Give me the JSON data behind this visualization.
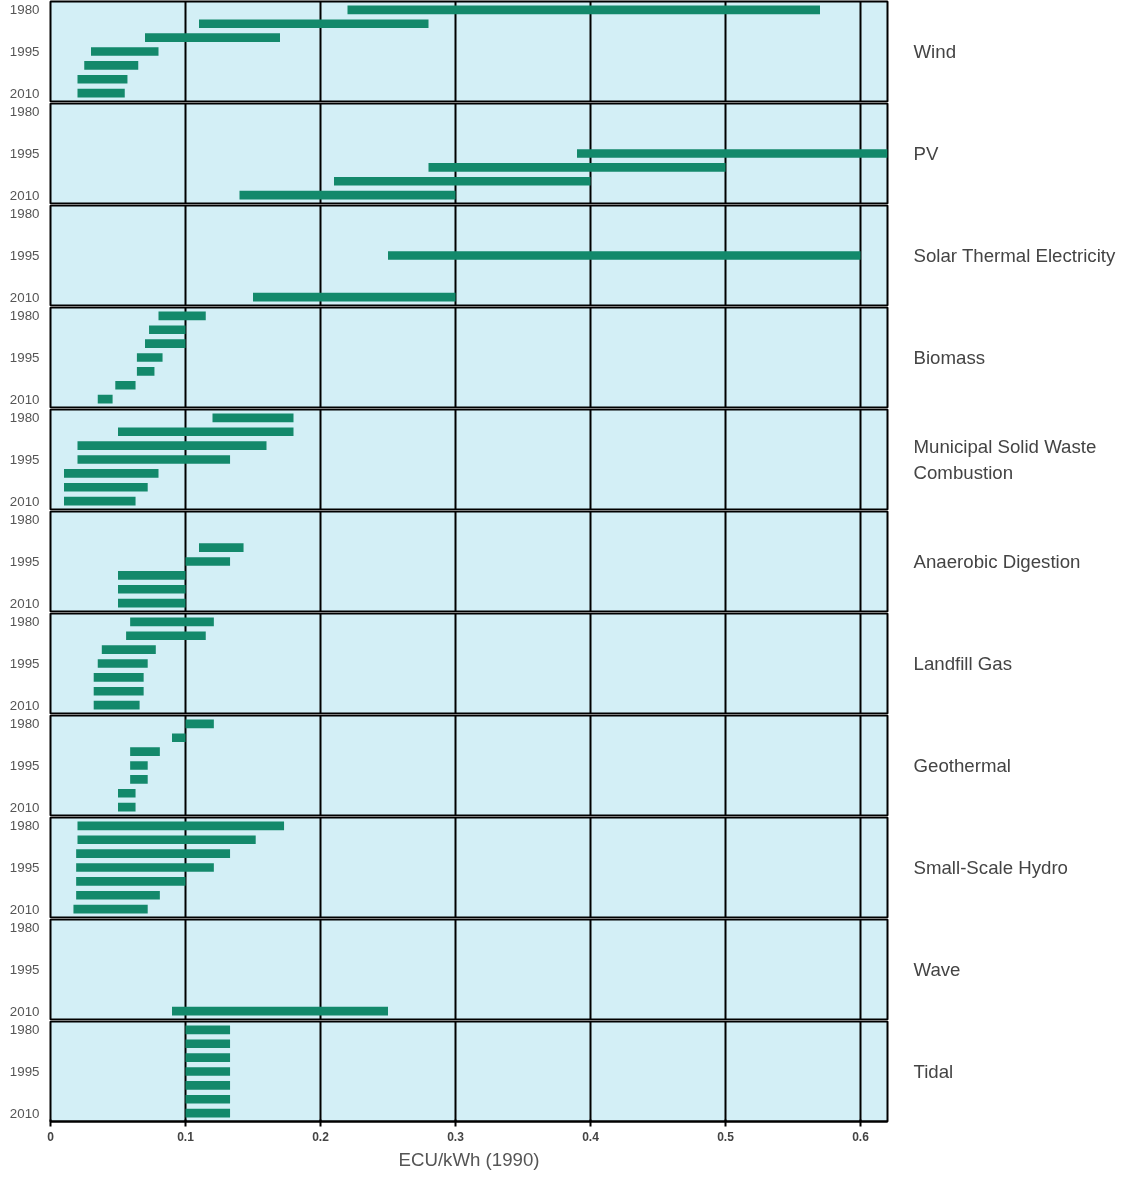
{
  "chart_data": [
    {
      "type": "bar",
      "orientation": "horizontal",
      "y2label": "Wind",
      "categories": [
        "1980",
        null,
        null,
        "1995",
        null,
        null,
        "2010"
      ],
      "base": [
        0.22,
        0.11,
        0.07,
        0.03,
        0.025,
        0.02,
        0.02
      ],
      "values": [
        0.35,
        0.17,
        0.1,
        0.05,
        0.04,
        0.037,
        0.035
      ],
      "color": "#13896b",
      "xlim": [
        0,
        0.62
      ],
      "xticks": [
        0,
        0.1,
        0.2,
        0.3,
        0.4,
        0.5,
        0.6
      ],
      "grid": "x",
      "tick_labels": "y"
    },
    {
      "type": "bar",
      "orientation": "horizontal",
      "y2label": "PV",
      "categories": [
        "1980",
        null,
        null,
        "1995",
        null,
        null,
        "2010"
      ],
      "base": [
        null,
        null,
        null,
        0.39,
        0.28,
        0.21,
        0.14
      ],
      "values": [
        null,
        null,
        null,
        0.23,
        0.22,
        0.19,
        0.16
      ],
      "color": "#13896b",
      "xlim": [
        0,
        0.62
      ],
      "xticks": [
        0,
        0.1,
        0.2,
        0.3,
        0.4,
        0.5,
        0.6
      ],
      "grid": "x",
      "tick_labels": "y"
    },
    {
      "type": "bar",
      "orientation": "horizontal",
      "y2label": "Solar Thermal Electricity",
      "categories": [
        "1980",
        null,
        null,
        "1995",
        null,
        null,
        "2010"
      ],
      "base": [
        null,
        null,
        null,
        0.25,
        null,
        null,
        0.15
      ],
      "values": [
        null,
        null,
        null,
        0.35,
        null,
        null,
        0.15
      ],
      "color": "#13896b",
      "xlim": [
        0,
        0.62
      ],
      "xticks": [
        0,
        0.1,
        0.2,
        0.3,
        0.4,
        0.5,
        0.6
      ],
      "grid": "x",
      "tick_labels": "y"
    },
    {
      "type": "bar",
      "orientation": "horizontal",
      "y2label": "Biomass",
      "categories": [
        "1980",
        null,
        null,
        "1995",
        null,
        null,
        "2010"
      ],
      "base": [
        0.08,
        0.073,
        0.07,
        0.064,
        0.064,
        0.048,
        0.035
      ],
      "values": [
        0.035,
        0.027,
        0.03,
        0.019,
        0.013,
        0.015,
        0.011
      ],
      "color": "#13896b",
      "xlim": [
        0,
        0.62
      ],
      "xticks": [
        0,
        0.1,
        0.2,
        0.3,
        0.4,
        0.5,
        0.6
      ],
      "grid": "x",
      "tick_labels": "y"
    },
    {
      "type": "bar",
      "orientation": "horizontal",
      "y2label": "Municipal Solid Waste Combustion",
      "categories": [
        "1980",
        null,
        null,
        "1995",
        null,
        null,
        "2010"
      ],
      "base": [
        0.12,
        0.05,
        0.02,
        0.02,
        0.01,
        0.01,
        0.01
      ],
      "values": [
        0.06,
        0.13,
        0.14,
        0.113,
        0.07,
        0.062,
        0.053
      ],
      "color": "#13896b",
      "xlim": [
        0,
        0.62
      ],
      "xticks": [
        0,
        0.1,
        0.2,
        0.3,
        0.4,
        0.5,
        0.6
      ],
      "grid": "x",
      "tick_labels": "y"
    },
    {
      "type": "bar",
      "orientation": "horizontal",
      "y2label": "Anaerobic Digestion",
      "categories": [
        "1980",
        null,
        null,
        "1995",
        null,
        null,
        "2010"
      ],
      "base": [
        null,
        null,
        0.11,
        0.1,
        0.05,
        0.05,
        0.05
      ],
      "values": [
        null,
        null,
        0.033,
        0.033,
        0.05,
        0.05,
        0.05
      ],
      "color": "#13896b",
      "xlim": [
        0,
        0.62
      ],
      "xticks": [
        0,
        0.1,
        0.2,
        0.3,
        0.4,
        0.5,
        0.6
      ],
      "grid": "x",
      "tick_labels": "y"
    },
    {
      "type": "bar",
      "orientation": "horizontal",
      "y2label": "Landfill Gas",
      "categories": [
        "1980",
        null,
        null,
        "1995",
        null,
        null,
        "2010"
      ],
      "base": [
        0.059,
        0.056,
        0.038,
        0.035,
        0.032,
        0.032,
        0.032
      ],
      "values": [
        0.062,
        0.059,
        0.04,
        0.037,
        0.037,
        0.037,
        0.034
      ],
      "color": "#13896b",
      "xlim": [
        0,
        0.62
      ],
      "xticks": [
        0,
        0.1,
        0.2,
        0.3,
        0.4,
        0.5,
        0.6
      ],
      "grid": "x",
      "tick_labels": "y"
    },
    {
      "type": "bar",
      "orientation": "horizontal",
      "y2label": "Geothermal",
      "categories": [
        "1980",
        null,
        null,
        "1995",
        null,
        null,
        "2010"
      ],
      "base": [
        0.1,
        0.09,
        0.059,
        0.059,
        0.059,
        0.05,
        0.05
      ],
      "values": [
        0.021,
        0.01,
        0.022,
        0.013,
        0.013,
        0.013,
        0.013
      ],
      "color": "#13896b",
      "xlim": [
        0,
        0.62
      ],
      "xticks": [
        0,
        0.1,
        0.2,
        0.3,
        0.4,
        0.5,
        0.6
      ],
      "grid": "x",
      "tick_labels": "y"
    },
    {
      "type": "bar",
      "orientation": "horizontal",
      "y2label": "Small-Scale Hydro",
      "categories": [
        "1980",
        null,
        null,
        "1995",
        null,
        null,
        "2010"
      ],
      "base": [
        0.02,
        0.02,
        0.019,
        0.019,
        0.019,
        0.019,
        0.017
      ],
      "values": [
        0.153,
        0.132,
        0.114,
        0.102,
        0.081,
        0.062,
        0.055
      ],
      "color": "#13896b",
      "xlim": [
        0,
        0.62
      ],
      "xticks": [
        0,
        0.1,
        0.2,
        0.3,
        0.4,
        0.5,
        0.6
      ],
      "grid": "x",
      "tick_labels": "y"
    },
    {
      "type": "bar",
      "orientation": "horizontal",
      "y2label": "Wave",
      "categories": [
        "1980",
        null,
        null,
        "1995",
        null,
        null,
        "2010"
      ],
      "base": [
        null,
        null,
        null,
        null,
        null,
        null,
        0.09
      ],
      "values": [
        null,
        null,
        null,
        null,
        null,
        null,
        0.16
      ],
      "color": "#13896b",
      "xlim": [
        0,
        0.62
      ],
      "xticks": [
        0,
        0.1,
        0.2,
        0.3,
        0.4,
        0.5,
        0.6
      ],
      "grid": "x",
      "tick_labels": "y"
    },
    {
      "type": "bar",
      "orientation": "horizontal",
      "y2label": "Tidal",
      "xlabel": "ECU/kWh (1990)",
      "categories": [
        "1980",
        null,
        null,
        "1995",
        null,
        null,
        "2010"
      ],
      "base": [
        0.1,
        0.1,
        0.1,
        0.1,
        0.1,
        0.1,
        0.1
      ],
      "values": [
        0.033,
        0.033,
        0.033,
        0.033,
        0.033,
        0.033,
        0.033
      ],
      "color": "#13896b",
      "xlim": [
        0,
        0.62
      ],
      "xticks": [
        0,
        0.1,
        0.2,
        0.3,
        0.4,
        0.5,
        0.6
      ],
      "grid": "x"
    }
  ]
}
